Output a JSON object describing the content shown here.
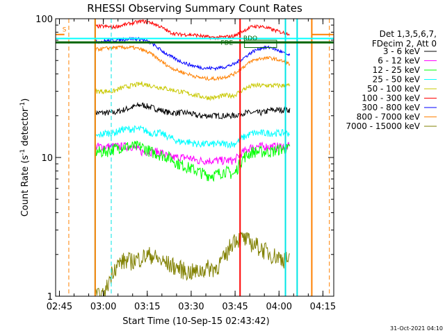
{
  "chart_data": {
    "type": "line",
    "title": "RHESSI Observing Summary Count Rates",
    "xlabel": "Start Time (10-Sep-15 02:43:42)",
    "ylabel": "Count Rate (s",
    "ylabel_sup": "-1",
    "ylabel_tail": " detector",
    "ylabel_sup2": "-1",
    "ylabel_close": ")",
    "y_scale": "log",
    "ylim": [
      1,
      100
    ],
    "xlim_minutes": [
      0,
      95
    ],
    "x_ticks": [
      {
        "minute": 1.3,
        "label": "02:45"
      },
      {
        "minute": 16.3,
        "label": "03:00"
      },
      {
        "minute": 31.3,
        "label": "03:15"
      },
      {
        "minute": 46.3,
        "label": "03:30"
      },
      {
        "minute": 61.3,
        "label": "03:45"
      },
      {
        "minute": 76.3,
        "label": "04:00"
      },
      {
        "minute": 91.3,
        "label": "04:15"
      }
    ],
    "y_ticks": [
      {
        "value": 1,
        "label": "1"
      },
      {
        "value": 10,
        "label": "10"
      },
      {
        "value": 100,
        "label": "100"
      }
    ],
    "legend_header": [
      "Det 1,3,5,6,7,",
      "FDecim 2, Att 0"
    ],
    "legend_position": "right",
    "series": [
      {
        "name": "3 - 6 keV",
        "color": "#000000",
        "values": [
          21,
          21,
          21,
          22,
          23,
          24,
          23,
          22,
          21,
          21,
          21,
          20,
          20,
          20,
          20,
          20,
          21,
          21,
          21,
          22,
          22,
          22
        ],
        "noise": 0.05
      },
      {
        "name": "6 - 12 keV",
        "color": "#ff00ff",
        "values": [
          12,
          12,
          12,
          12,
          12,
          11,
          11,
          11,
          10,
          10,
          10,
          9.5,
          9.5,
          9.5,
          9.5,
          9.5,
          11,
          12,
          12,
          12,
          12,
          12
        ],
        "noise": 0.07
      },
      {
        "name": "12 - 25 keV",
        "color": "#00ff00",
        "values": [
          11,
          11,
          11.5,
          12,
          12,
          12,
          11,
          10.5,
          10,
          9,
          8.5,
          8,
          7.5,
          7.5,
          8,
          7.5,
          10,
          11,
          11,
          11,
          11.5,
          11.5
        ],
        "noise": 0.1
      },
      {
        "name": "25 - 50 keV",
        "color": "#00ffff",
        "values": [
          14,
          15,
          15,
          16,
          16,
          16,
          15,
          15,
          14,
          13,
          13,
          12.5,
          12.5,
          12.5,
          12.5,
          12.5,
          14,
          15,
          15,
          15,
          15,
          15
        ],
        "noise": 0.06
      },
      {
        "name": "50 - 100 keV",
        "color": "#c8c800",
        "values": [
          30,
          30,
          30,
          32,
          33,
          34,
          33,
          32,
          31,
          30,
          29,
          28,
          27,
          27,
          28,
          28,
          31,
          33,
          33,
          33,
          33,
          33
        ],
        "noise": 0.04
      },
      {
        "name": "100 - 300 keV",
        "color": "#ff0000",
        "values": [
          88,
          88,
          87,
          90,
          93,
          96,
          94,
          88,
          80,
          77,
          77,
          76,
          74,
          73,
          74,
          75,
          82,
          88,
          88,
          84,
          80,
          78
        ],
        "noise": 0.03
      },
      {
        "name": "300 - 800 keV",
        "color": "#0000ff",
        "values": [
          68,
          69,
          70,
          71,
          72,
          71,
          67,
          60,
          54,
          50,
          47,
          45,
          44,
          44,
          45,
          47,
          52,
          58,
          62,
          62,
          58,
          54
        ],
        "noise": 0.03
      },
      {
        "name": "800 - 7000 keV",
        "color": "#ff8000",
        "values": [
          60,
          61,
          62,
          62,
          62,
          60,
          56,
          50,
          45,
          42,
          40,
          38,
          37,
          37,
          38,
          40,
          45,
          50,
          52,
          52,
          50,
          47
        ],
        "noise": 0.03
      },
      {
        "name": "7000 - 15000 keV",
        "color": "#808000",
        "values": [
          1,
          1,
          1.6,
          1.8,
          1.8,
          1.9,
          2,
          1.8,
          1.7,
          1.6,
          1.5,
          1.5,
          1.6,
          1.6,
          1.9,
          2.6,
          2.6,
          2.4,
          2.2,
          2,
          1.9,
          1.8
        ],
        "noise": 0.15
      }
    ],
    "series_span_minutes": [
      13.5,
      80
    ],
    "annotations": [
      {
        "text": "S",
        "color": "#ff8000",
        "minute": 3,
        "value": 81
      },
      {
        "text": "RDO",
        "color": "#006400",
        "minute": 66.5,
        "value": 70
      },
      {
        "text": "FDE",
        "color": "#006400",
        "minute": 58.5,
        "value": 65
      }
    ],
    "markers": [
      {
        "kind": "orange-dashed",
        "color": "#ff8000",
        "minutes": [
          4.5,
          93.5
        ]
      },
      {
        "kind": "cyan-dashed",
        "color": "#00e5e5",
        "minutes": [
          19
        ]
      },
      {
        "kind": "cyan-solid",
        "color": "#00e5e5",
        "minutes": [
          13.5,
          78.5,
          82.5
        ]
      },
      {
        "kind": "orange-solid",
        "color": "#ff8000",
        "minutes": [
          13.5,
          87.5
        ]
      },
      {
        "kind": "red-solid",
        "color": "#ff0000",
        "minutes": [
          63
        ]
      }
    ],
    "footer_stamp": "31-Oct-2021 04:10"
  }
}
